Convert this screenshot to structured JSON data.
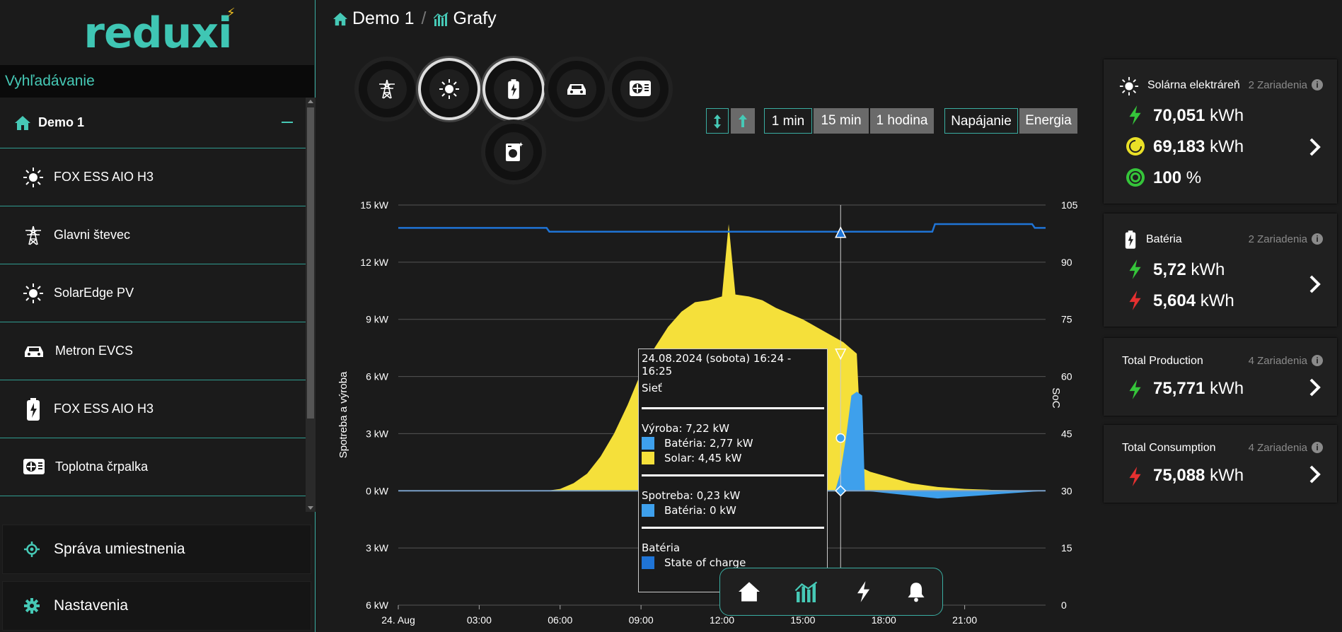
{
  "logo": {
    "text": "reduxi"
  },
  "search": {
    "label": "Vyhľadávanie"
  },
  "tree": {
    "root": "Demo 1",
    "items": [
      {
        "label": "FOX ESS AIO H3",
        "icon": "sun-icon"
      },
      {
        "label": "Glavni števec",
        "icon": "power-tower-icon"
      },
      {
        "label": "SolarEdge PV",
        "icon": "sun-icon"
      },
      {
        "label": "Metron EVCS",
        "icon": "car-icon"
      },
      {
        "label": "FOX ESS AIO H3",
        "icon": "battery-icon"
      },
      {
        "label": "Toplotna črpalka",
        "icon": "heat-pump-icon"
      }
    ]
  },
  "menu": {
    "locations": "Správa umiestnenia",
    "settings": "Nastavenia"
  },
  "breadcrumb": {
    "home": "Demo 1",
    "sep": "/",
    "page": "Grafy"
  },
  "toolbar": {
    "range": [
      "1 min",
      "15 min",
      "1 hodina"
    ],
    "mode": [
      "Napájanie",
      "Energia"
    ]
  },
  "chart_data": {
    "type": "area",
    "ylabel": "Spotreba a výroba",
    "y2label": "SoC",
    "yticks": [
      "15 kW",
      "12 kW",
      "9 kW",
      "6 kW",
      "3 kW",
      "0 kW",
      "3 kW",
      "6 kW"
    ],
    "y2ticks": [
      "105",
      "90",
      "75",
      "60",
      "45",
      "30",
      "15",
      "0"
    ],
    "xticks": [
      "24. Aug",
      "03:00",
      "06:00",
      "09:00",
      "12:00",
      "15:00",
      "18:00",
      "21:00"
    ],
    "ylim": [
      -6,
      15
    ],
    "y2lim": [
      0,
      105
    ],
    "series": [
      {
        "name": "Solar",
        "color": "#f5e03a",
        "x": [
          0,
          5.5,
          6,
          6.5,
          7,
          7.5,
          8,
          8.5,
          9,
          9.5,
          10,
          10.5,
          11,
          11.5,
          12,
          12.25,
          12.5,
          13,
          13.5,
          14,
          14.5,
          15,
          15.5,
          16,
          16.5,
          17,
          17.2,
          17.5,
          18,
          18.5,
          19,
          19.5,
          20,
          21,
          22,
          24
        ],
        "y": [
          0,
          0,
          0.1,
          0.4,
          0.9,
          1.8,
          3,
          4.5,
          6.2,
          7.5,
          8.6,
          9.4,
          9.9,
          10,
          10.2,
          14,
          10.3,
          10.2,
          10,
          9.6,
          9.3,
          9,
          8.6,
          8.2,
          7.8,
          7.2,
          1.2,
          1,
          0.8,
          0.6,
          0.4,
          0.3,
          0.2,
          0.1,
          0.05,
          0
        ]
      },
      {
        "name": "Batéria",
        "color": "#3ea0ec",
        "x": [
          0,
          16.2,
          16.4,
          16.6,
          16.8,
          17,
          17.2,
          17.3,
          20,
          24
        ],
        "y": [
          0,
          0,
          1,
          2.8,
          5,
          5.2,
          5,
          0,
          -0.4,
          0
        ]
      },
      {
        "name": "State of charge",
        "color": "#1f74d6",
        "x": [
          0,
          5.5,
          5.6,
          16,
          17.5,
          19.8,
          19.9,
          23.5,
          23.6,
          24
        ],
        "y": [
          99,
          99,
          98,
          98,
          98,
          98,
          100,
          100,
          99,
          99
        ]
      }
    ]
  },
  "tooltip": {
    "date": "24.08.2024 (sobota) 16:24 - 16:25",
    "grid": "Sieť",
    "production": "Výroba: 7,22 kW",
    "prod_battery": "Batéria: 2,77 kW",
    "prod_solar": "Solar: 4,45 kW",
    "consumption": "Spotreba: 0,23 kW",
    "cons_battery": "Batéria: 0 kW",
    "battery": "Batéria",
    "soc": "State of charge"
  },
  "cards": [
    {
      "title": "Solárna elektráreň",
      "devices": "2 Zariadenia",
      "values": [
        {
          "num": "70,051",
          "unit": "kWh"
        },
        {
          "num": "69,183",
          "unit": "kWh"
        },
        {
          "num": "100",
          "unit": "%"
        }
      ]
    },
    {
      "title": "Batéria",
      "devices": "2 Zariadenia",
      "values": [
        {
          "num": "5,72",
          "unit": "kWh"
        },
        {
          "num": "5,604",
          "unit": "kWh"
        }
      ]
    },
    {
      "title": "Total Production",
      "devices": "4 Zariadenia",
      "values": [
        {
          "num": "75,771",
          "unit": "kWh"
        }
      ]
    },
    {
      "title": "Total Consumption",
      "devices": "4 Zariadenia",
      "values": [
        {
          "num": "75,088",
          "unit": "kWh"
        }
      ]
    }
  ],
  "colors": {
    "accent": "#3fc6b4",
    "solar": "#f5e03a",
    "battery": "#3ea0ec",
    "soc": "#1f74d6",
    "green": "#35c53a",
    "red": "#e53030"
  }
}
